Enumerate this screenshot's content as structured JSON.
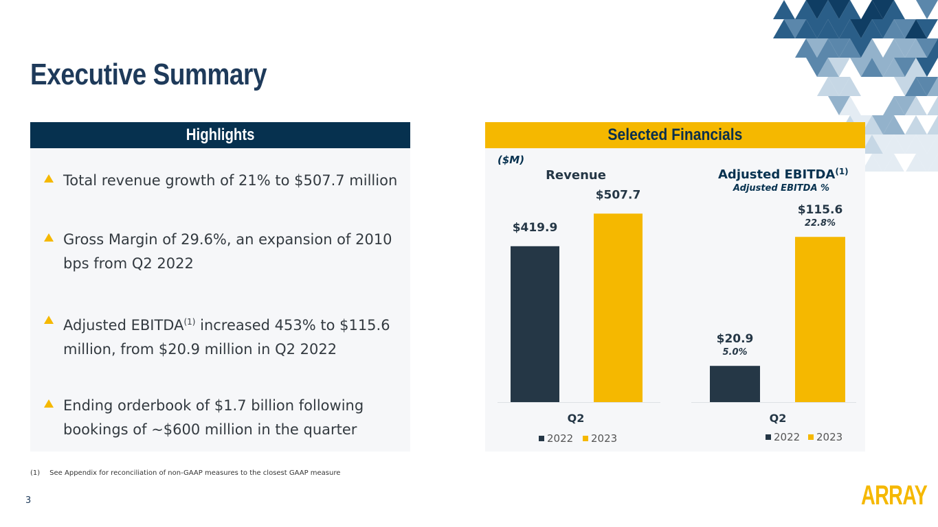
{
  "page": {
    "title": "Executive Summary",
    "page_number": "3",
    "logo_text": "ARRAY",
    "footnote_marker": "(1)",
    "footnote_text": "See Appendix for reconciliation of non-GAAP measures to the closest GAAP measure"
  },
  "highlights": {
    "header": "Highlights",
    "items": [
      {
        "text": "Total revenue growth of 21% to $507.7 million"
      },
      {
        "text_line1": "Gross Margin of 29.6%, an expansion of 2010",
        "text_line2": "bps from Q2 2022"
      },
      {
        "pre": "Adjusted EBITDA",
        "sup": "(1)",
        "post": " increased 453% to $115.6",
        "line2": "million, from $20.9 million in Q2 2022"
      },
      {
        "text_line1": "Ending orderbook of $1.7 billion following",
        "text_line2": "bookings of ~$600 million in the quarter"
      }
    ]
  },
  "financials": {
    "header": "Selected Financials",
    "units": "($M)"
  },
  "colors": {
    "navy": "#06314f",
    "series_2022": "#253746",
    "series_2023": "#f5b800",
    "accent_yellow": "#f5b800"
  },
  "chart_data": [
    {
      "type": "bar",
      "title": "Revenue",
      "categories": [
        "Q2"
      ],
      "series": [
        {
          "name": "2022",
          "values": [
            419.9
          ],
          "labels": [
            "$419.9"
          ]
        },
        {
          "name": "2023",
          "values": [
            507.7
          ],
          "labels": [
            "$507.7"
          ]
        }
      ],
      "ylim": [
        0,
        560
      ],
      "legend": "bottom"
    },
    {
      "type": "bar",
      "title": "Adjusted EBITDA",
      "title_sup": "(1)",
      "subtitle": "Adjusted EBITDA %",
      "categories": [
        "Q2"
      ],
      "series": [
        {
          "name": "2022",
          "values": [
            20.9
          ],
          "labels": [
            "$20.9"
          ],
          "pct_labels": [
            "5.0%"
          ],
          "pct_values": [
            5.0
          ]
        },
        {
          "name": "2023",
          "values": [
            115.6
          ],
          "labels": [
            "$115.6"
          ],
          "pct_labels": [
            "22.8%"
          ],
          "pct_values": [
            22.8
          ]
        }
      ],
      "bar_height_metric": "adjusted_ebitda_pct",
      "ylim_pct": [
        0,
        25
      ],
      "legend": "bottom"
    }
  ]
}
